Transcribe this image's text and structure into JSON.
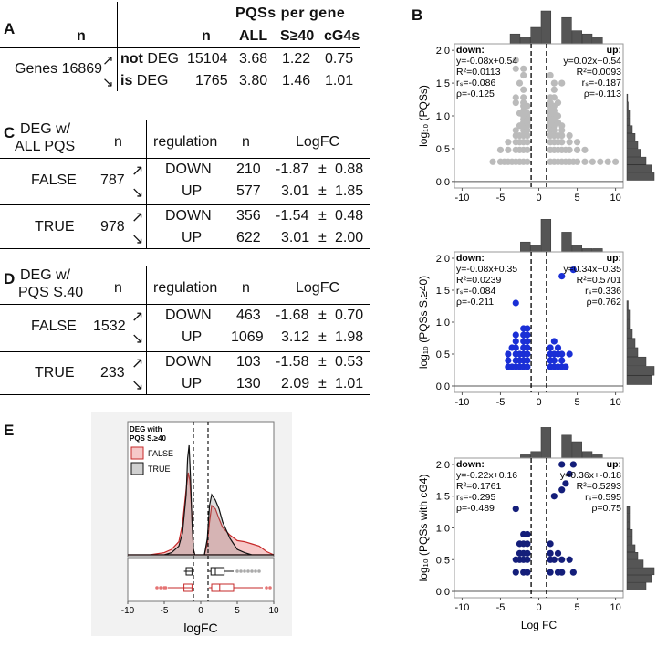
{
  "panel_labels": {
    "a": "A",
    "b": "B",
    "c": "C",
    "d": "D",
    "e": "E"
  },
  "table_a": {
    "group_header": "PQSs per gene",
    "col_n_left": "n",
    "col_n": "n",
    "col_all": "ALL",
    "col_s40": "S≥40",
    "col_cg4": "cG4s",
    "genes_label": "Genes 16869",
    "rows": [
      {
        "prefix": "not",
        "label": " DEG",
        "n": "15104",
        "all": "3.68",
        "s40": "1.22",
        "cg4": "0.75"
      },
      {
        "prefix": "is",
        "label": " DEG",
        "n": "1765",
        "all": "3.80",
        "s40": "1.46",
        "cg4": "1.01"
      }
    ]
  },
  "table_c": {
    "title_line1": "DEG w/",
    "title_line2": "ALL PQS",
    "col_n1": "n",
    "col_regulation": "regulation",
    "col_n2": "n",
    "col_logfc": "LogFC",
    "groups": [
      {
        "label": "FALSE",
        "n": "787",
        "rows": [
          {
            "reg": "DOWN",
            "n": "210",
            "mean": "-1.87",
            "pm": "±",
            "sd": "0.88"
          },
          {
            "reg": "UP",
            "n": "577",
            "mean": "3.01",
            "pm": "±",
            "sd": "1.85"
          }
        ]
      },
      {
        "label": "TRUE",
        "n": "978",
        "rows": [
          {
            "reg": "DOWN",
            "n": "356",
            "mean": "-1.54",
            "pm": "±",
            "sd": "0.48"
          },
          {
            "reg": "UP",
            "n": "622",
            "mean": "3.01",
            "pm": "±",
            "sd": "2.00"
          }
        ]
      }
    ]
  },
  "table_d": {
    "title_line1": "DEG w/",
    "title_line2": "PQS S.40",
    "col_n1": "n",
    "col_regulation": "regulation",
    "col_n2": "n",
    "col_logfc": "LogFC",
    "groups": [
      {
        "label": "FALSE",
        "n": "1532",
        "rows": [
          {
            "reg": "DOWN",
            "n": "463",
            "mean": "-1.68",
            "pm": "±",
            "sd": "0.70"
          },
          {
            "reg": "UP",
            "n": "1069",
            "mean": "3.12",
            "pm": "±",
            "sd": "1.98"
          }
        ]
      },
      {
        "label": "TRUE",
        "n": "233",
        "rows": [
          {
            "reg": "DOWN",
            "n": "103",
            "mean": "-1.58",
            "pm": "±",
            "sd": "0.53"
          },
          {
            "reg": "UP",
            "n": "130",
            "mean": "2.09",
            "pm": "±",
            "sd": "1.01"
          }
        ]
      }
    ]
  },
  "arrow_up": "↗",
  "arrow_down": "↘",
  "chart_data": [
    {
      "id": "B1",
      "type": "scatter",
      "ylabel": "log₁₀ (PQSs)",
      "xlabel": "",
      "xlim": [
        -11,
        11
      ],
      "ylim": [
        -0.1,
        2.1
      ],
      "xticks": [
        "-10",
        "-5",
        "0",
        "5",
        "10"
      ],
      "yticks": [
        "0.0",
        "0.5",
        "1.0",
        "1.5",
        "2.0"
      ],
      "vlines": [
        -1,
        1
      ],
      "color": "#bbbbbb",
      "stats_down": [
        "down:",
        "y=-0.08x+0.54",
        "R²=0.0113",
        "rₛ=-0.086",
        "ρ=-0.125"
      ],
      "stats_up": [
        "up:",
        "y=0.02x+0.54",
        "R²=0.0093",
        "rₛ=-0.187",
        "ρ=-0.113"
      ],
      "top_hist": [
        3,
        2,
        5,
        10,
        0,
        8,
        4,
        3,
        2
      ],
      "side_hist": [
        10,
        9,
        7,
        5,
        4,
        3,
        2,
        1,
        1,
        0.5,
        0.3
      ],
      "points": [
        [
          -6,
          0.3
        ],
        [
          -5,
          0.3
        ],
        [
          -4.5,
          0.3
        ],
        [
          -4,
          0.3
        ],
        [
          -3.5,
          0.3
        ],
        [
          -3,
          0.3
        ],
        [
          -2.5,
          0.3
        ],
        [
          -2,
          0.3
        ],
        [
          -1.5,
          0.3
        ],
        [
          1.5,
          0.3
        ],
        [
          2,
          0.3
        ],
        [
          2.5,
          0.3
        ],
        [
          3,
          0.3
        ],
        [
          3.5,
          0.3
        ],
        [
          4,
          0.3
        ],
        [
          4.5,
          0.3
        ],
        [
          5,
          0.3
        ],
        [
          6,
          0.3
        ],
        [
          7,
          0.3
        ],
        [
          8,
          0.3
        ],
        [
          9,
          0.3
        ],
        [
          10,
          0.3
        ],
        [
          -5,
          0.48
        ],
        [
          -4,
          0.48
        ],
        [
          -3,
          0.48
        ],
        [
          -2.5,
          0.48
        ],
        [
          -2,
          0.48
        ],
        [
          -1.5,
          0.48
        ],
        [
          1.5,
          0.48
        ],
        [
          2,
          0.48
        ],
        [
          2.5,
          0.48
        ],
        [
          3,
          0.48
        ],
        [
          3.5,
          0.48
        ],
        [
          4,
          0.48
        ],
        [
          5,
          0.48
        ],
        [
          6,
          0.48
        ],
        [
          -4,
          0.6
        ],
        [
          -3,
          0.6
        ],
        [
          -2.5,
          0.6
        ],
        [
          -2,
          0.6
        ],
        [
          -1.5,
          0.6
        ],
        [
          1.5,
          0.6
        ],
        [
          2,
          0.6
        ],
        [
          2.5,
          0.6
        ],
        [
          3,
          0.6
        ],
        [
          4,
          0.6
        ],
        [
          5,
          0.6
        ],
        [
          -3,
          0.7
        ],
        [
          -2.5,
          0.7
        ],
        [
          -2,
          0.7
        ],
        [
          -1.5,
          0.7
        ],
        [
          1.5,
          0.7
        ],
        [
          2,
          0.7
        ],
        [
          2.5,
          0.7
        ],
        [
          3,
          0.7
        ],
        [
          4,
          0.7
        ],
        [
          -3,
          0.78
        ],
        [
          -2,
          0.78
        ],
        [
          -1.5,
          0.78
        ],
        [
          1.5,
          0.78
        ],
        [
          2,
          0.78
        ],
        [
          3,
          0.78
        ],
        [
          -2.5,
          0.85
        ],
        [
          -2,
          0.85
        ],
        [
          -1.5,
          0.85
        ],
        [
          1.5,
          0.85
        ],
        [
          2,
          0.85
        ],
        [
          3,
          0.85
        ],
        [
          -2,
          0.9
        ],
        [
          -1.5,
          0.9
        ],
        [
          1.5,
          0.9
        ],
        [
          2,
          0.9
        ],
        [
          2.5,
          0.9
        ],
        [
          -2,
          0.95
        ],
        [
          -1.5,
          0.95
        ],
        [
          1.5,
          0.95
        ],
        [
          2,
          0.95
        ],
        [
          -2,
          1.0
        ],
        [
          -1.5,
          1.0
        ],
        [
          1.5,
          1.0
        ],
        [
          2,
          1.0
        ],
        [
          2.5,
          1.0
        ],
        [
          -2.5,
          1.04
        ],
        [
          -1.5,
          1.04
        ],
        [
          1.5,
          1.04
        ],
        [
          2,
          1.04
        ],
        [
          -2,
          1.08
        ],
        [
          1.5,
          1.08
        ],
        [
          2,
          1.08
        ],
        [
          -2,
          1.15
        ],
        [
          -1.5,
          1.15
        ],
        [
          1.5,
          1.15
        ],
        [
          2,
          1.15
        ],
        [
          -3,
          1.2
        ],
        [
          -2,
          1.2
        ],
        [
          1.5,
          1.2
        ],
        [
          2.5,
          1.2
        ],
        [
          -3,
          1.28
        ],
        [
          -2,
          1.28
        ],
        [
          1.5,
          1.28
        ],
        [
          2,
          1.28
        ],
        [
          -2,
          1.4
        ],
        [
          2,
          1.4
        ],
        [
          -2.5,
          1.5
        ],
        [
          2,
          1.5
        ],
        [
          3,
          1.5
        ],
        [
          -2,
          1.62
        ],
        [
          1.5,
          1.62
        ],
        [
          -3,
          1.72
        ],
        [
          -2,
          1.72
        ],
        [
          -3,
          1.85
        ]
      ]
    },
    {
      "id": "B2",
      "type": "scatter",
      "ylabel": "log₁₀ (PQSs S.≥40)",
      "xlabel": "",
      "xlim": [
        -11,
        11
      ],
      "ylim": [
        -0.1,
        2.1
      ],
      "xticks": [
        "-10",
        "-5",
        "0",
        "5",
        "10"
      ],
      "yticks": [
        "0.0",
        "0.5",
        "1.0",
        "1.5",
        "2.0"
      ],
      "vlines": [
        -1,
        1
      ],
      "color": "#1a2fd6",
      "stats_down": [
        "down:",
        "y=-0.08x+0.35",
        "R²=0.0239",
        "rₛ=-0.084",
        "ρ=-0.211"
      ],
      "stats_up": [
        "up:",
        "y=0.34x+0.35",
        "R²=0.5701",
        "rₛ=0.336",
        "ρ=0.762"
      ],
      "top_hist": [
        0,
        3,
        2,
        10,
        0,
        6,
        2,
        1,
        1
      ],
      "side_hist": [
        9,
        10,
        7,
        4,
        3,
        2,
        1,
        1,
        0.5
      ],
      "points": [
        [
          -4,
          0.3
        ],
        [
          -3.5,
          0.3
        ],
        [
          -3,
          0.3
        ],
        [
          -2.5,
          0.3
        ],
        [
          -2,
          0.3
        ],
        [
          -1.5,
          0.3
        ],
        [
          1.5,
          0.3
        ],
        [
          2,
          0.3
        ],
        [
          2.5,
          0.3
        ],
        [
          3,
          0.3
        ],
        [
          3.5,
          0.3
        ],
        [
          -4,
          0.4
        ],
        [
          -3,
          0.4
        ],
        [
          -2.5,
          0.4
        ],
        [
          -2,
          0.4
        ],
        [
          -1.5,
          0.4
        ],
        [
          1.5,
          0.4
        ],
        [
          2,
          0.4
        ],
        [
          3,
          0.4
        ],
        [
          -4,
          0.5
        ],
        [
          -3,
          0.5
        ],
        [
          -2.5,
          0.5
        ],
        [
          -2,
          0.5
        ],
        [
          -1.5,
          0.5
        ],
        [
          1.5,
          0.5
        ],
        [
          2,
          0.5
        ],
        [
          2.5,
          0.5
        ],
        [
          3,
          0.5
        ],
        [
          4,
          0.5
        ],
        [
          -3.5,
          0.6
        ],
        [
          -3,
          0.6
        ],
        [
          -2,
          0.6
        ],
        [
          -1.5,
          0.6
        ],
        [
          1.5,
          0.6
        ],
        [
          2.5,
          0.6
        ],
        [
          -3,
          0.7
        ],
        [
          -2,
          0.7
        ],
        [
          -1.5,
          0.7
        ],
        [
          2,
          0.7
        ],
        [
          -3,
          0.8
        ],
        [
          -2,
          0.8
        ],
        [
          -1.5,
          0.8
        ],
        [
          -2,
          0.9
        ],
        [
          -1.5,
          0.9
        ],
        [
          -3,
          1.3
        ],
        [
          4.5,
          1.82
        ],
        [
          3,
          1.72
        ]
      ]
    },
    {
      "id": "B3",
      "type": "scatter",
      "ylabel": "log₁₀ (PQSs with cG4)",
      "xlabel": "Log FC",
      "xlim": [
        -11,
        11
      ],
      "ylim": [
        -0.1,
        2.1
      ],
      "xticks": [
        "-10",
        "-5",
        "0",
        "5",
        "10"
      ],
      "yticks": [
        "0.0",
        "0.5",
        "1.0",
        "1.5",
        "2.0"
      ],
      "vlines": [
        -1,
        1
      ],
      "color": "#141e7a",
      "stats_down": [
        "down:",
        "y=-0.22x+0.16",
        "R²=0.1761",
        "rₛ=-0.295",
        "ρ=-0.489"
      ],
      "stats_up": [
        "up:",
        "y=0.36x+-0.18",
        "R²=0.5293",
        "rₛ=0.595",
        "ρ=0.75"
      ],
      "top_hist": [
        0,
        1,
        2,
        10,
        0,
        7,
        5,
        2,
        1
      ],
      "side_hist": [
        7,
        9,
        10,
        6,
        4,
        3,
        2,
        2,
        1,
        1,
        1
      ],
      "points": [
        [
          -3,
          0.3
        ],
        [
          -2,
          0.3
        ],
        [
          -1.5,
          0.3
        ],
        [
          1.5,
          0.3
        ],
        [
          2.5,
          0.3
        ],
        [
          3,
          0.3
        ],
        [
          4.5,
          0.3
        ],
        [
          -3,
          0.5
        ],
        [
          -2.5,
          0.5
        ],
        [
          -2,
          0.5
        ],
        [
          -1.5,
          0.5
        ],
        [
          1.5,
          0.5
        ],
        [
          2,
          0.5
        ],
        [
          3,
          0.5
        ],
        [
          4,
          0.5
        ],
        [
          -2.5,
          0.6
        ],
        [
          -2,
          0.6
        ],
        [
          -1.5,
          0.6
        ],
        [
          1.5,
          0.6
        ],
        [
          2.5,
          0.6
        ],
        [
          -2.5,
          0.75
        ],
        [
          -2,
          0.75
        ],
        [
          -1.5,
          0.75
        ],
        [
          1.5,
          0.75
        ],
        [
          -2,
          0.9
        ],
        [
          -1.5,
          0.9
        ],
        [
          -3,
          1.3
        ],
        [
          2,
          1.5
        ],
        [
          3,
          1.6
        ],
        [
          3.5,
          1.7
        ],
        [
          4,
          1.85
        ],
        [
          4.5,
          2.0
        ],
        [
          3,
          2.0
        ]
      ]
    },
    {
      "id": "E",
      "type": "area",
      "title_line1": "DEG with",
      "title_line2": "PQS S.≥40",
      "xlabel": "logFC",
      "xlim": [
        -10,
        10
      ],
      "xticks": [
        "-10",
        "-5",
        "0",
        "5",
        "10"
      ],
      "legend": [
        {
          "name": "FALSE",
          "color": "#e0484a"
        },
        {
          "name": "TRUE",
          "color": "#888888"
        }
      ],
      "vlines": [
        -1,
        1
      ],
      "series": [
        {
          "name": "FALSE",
          "x": [
            -10,
            -7,
            -5,
            -4,
            -3,
            -2.5,
            -2,
            -1.7,
            -1.5,
            -1.2,
            -1,
            -0.8,
            0,
            0.5,
            0.9,
            1.2,
            1.5,
            2,
            2.5,
            3,
            4,
            5,
            6,
            7,
            8,
            9,
            10
          ],
          "y": [
            0,
            0,
            0.02,
            0.05,
            0.12,
            0.28,
            0.6,
            0.75,
            0.68,
            0.35,
            0.05,
            0.0,
            0,
            0.0,
            0.1,
            0.3,
            0.45,
            0.42,
            0.33,
            0.25,
            0.18,
            0.13,
            0.12,
            0.1,
            0.08,
            0.03,
            0
          ]
        },
        {
          "name": "TRUE",
          "x": [
            -10,
            -7,
            -5,
            -4,
            -3,
            -2.5,
            -2,
            -1.8,
            -1.6,
            -1.4,
            -1.2,
            -1,
            -0.8,
            0,
            0.5,
            0.9,
            1.2,
            1.5,
            2,
            2.5,
            3,
            4,
            5,
            6,
            7,
            8,
            10
          ],
          "y": [
            0,
            0,
            0,
            0.02,
            0.08,
            0.2,
            0.55,
            0.88,
            1.0,
            0.7,
            0.3,
            0.05,
            0,
            0,
            0,
            0.15,
            0.45,
            0.55,
            0.5,
            0.42,
            0.3,
            0.15,
            0.05,
            0.02,
            0,
            0,
            0
          ]
        }
      ],
      "boxplots": [
        {
          "name": "TRUE",
          "whisker_left": [
            -2.3,
            -1.2
          ],
          "box": [
            -2,
            -1.4,
            -1.2
          ],
          "box_up": [
            1.4,
            2.0,
            3.2
          ],
          "whisker_up": [
            1.1,
            4.5
          ],
          "outliers": [
            5,
            5.5,
            6,
            6.5,
            7,
            7.5,
            8
          ]
        },
        {
          "name": "FALSE",
          "whisker_left": [
            -4.5,
            -1.1
          ],
          "box": [
            -2.3,
            -1.6,
            -1.2
          ],
          "box_up": [
            1.5,
            2.6,
            4.5
          ],
          "whisker_up": [
            1.1,
            8.5
          ],
          "outliers": [
            -6,
            -5.5,
            -5,
            -4.8,
            9,
            9.5
          ]
        }
      ]
    }
  ]
}
